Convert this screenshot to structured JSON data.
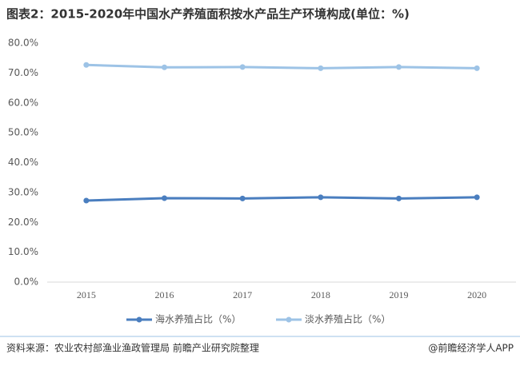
{
  "chart_data": {
    "type": "line",
    "title": "图表2：2015-2020年中国水产养殖面积按水产品生产环境构成(单位：%)",
    "categories": [
      "2015",
      "2016",
      "2017",
      "2018",
      "2019",
      "2020"
    ],
    "series": [
      {
        "name": "海水养殖占比（%）",
        "color": "#4a7ebf",
        "values": [
          27.3,
          28.1,
          28.0,
          28.4,
          28.0,
          28.4
        ]
      },
      {
        "name": "淡水养殖占比（%）",
        "color": "#9dc3e6",
        "values": [
          72.7,
          71.9,
          72.0,
          71.6,
          72.0,
          71.6
        ]
      }
    ],
    "ylim": [
      0,
      80
    ],
    "yticks": [
      {
        "value": 0,
        "label": "0.0%"
      },
      {
        "value": 10,
        "label": "10.0%"
      },
      {
        "value": 20,
        "label": "20.0%"
      },
      {
        "value": 30,
        "label": "30.0%"
      },
      {
        "value": 40,
        "label": "40.0%"
      },
      {
        "value": 50,
        "label": "50.0%"
      },
      {
        "value": 60,
        "label": "60.0%"
      },
      {
        "value": 70,
        "label": "70.0%"
      },
      {
        "value": 80,
        "label": "80.0%"
      }
    ],
    "grid": false,
    "legend": "bottom",
    "source": "资料来源：农业农村部渔业渔政管理局 前瞻产业研究院整理",
    "credit": "@前瞻经济学人APP"
  }
}
